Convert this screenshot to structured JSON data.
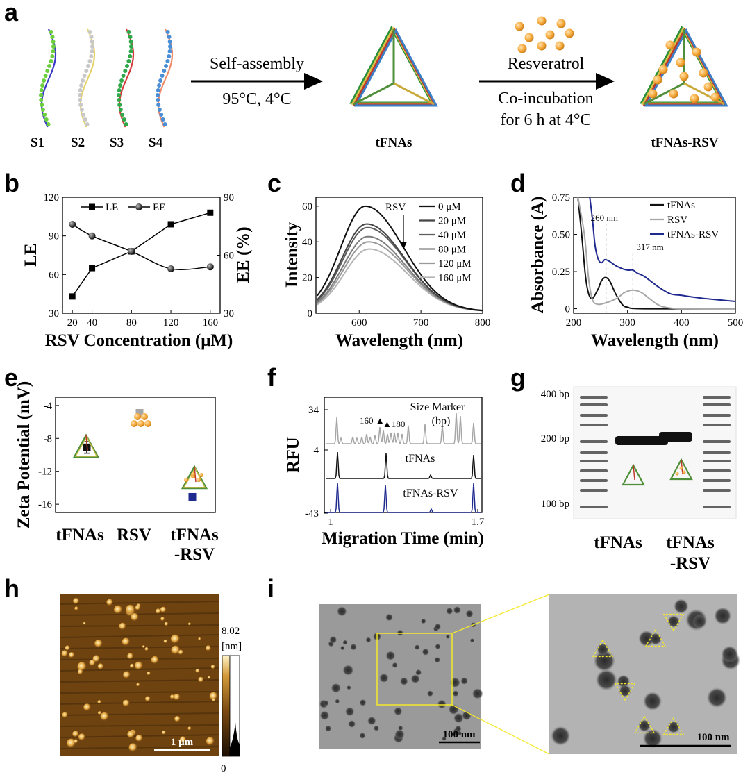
{
  "panels": {
    "a": {
      "label": "a",
      "strands": [
        "S1",
        "S2",
        "S3",
        "S4"
      ],
      "arrow1_top": "Self-assembly",
      "arrow1_bottom": "95°C, 4°C",
      "product1": "tFNAs",
      "arrow2_top": "Resveratrol",
      "arrow2_bottom1": "Co-incubation",
      "arrow2_bottom2": "for 6 h at 4°C",
      "product2": "tFNAs-RSV"
    },
    "b": {
      "label": "b"
    },
    "c": {
      "label": "c"
    },
    "d": {
      "label": "d"
    },
    "e": {
      "label": "e"
    },
    "f": {
      "label": "f"
    },
    "g": {
      "label": "g",
      "markers": [
        "400 bp",
        "200 bp",
        "100 bp"
      ],
      "lanes": [
        "tFNAs",
        "tFNAs",
        "-RSV"
      ]
    },
    "h": {
      "label": "h",
      "colorbar_max": "8.02",
      "colorbar_unit": "[nm]",
      "colorbar_min": "0",
      "scalebar": "1 μm"
    },
    "i": {
      "label": "i",
      "scalebar_left": "100 nm",
      "scalebar_right": "100 nm"
    }
  },
  "colors": {
    "navy": "#1f2a8f",
    "gray": "#a6a6a6",
    "black": "#111111",
    "orange": "#f5a93a"
  },
  "chart_data": [
    {
      "panel": "b",
      "type": "line",
      "xlabel": "RSV Concentration (μM)",
      "ylabel": "LE",
      "y2label": "EE (%)",
      "x": [
        20,
        40,
        80,
        120,
        160
      ],
      "xticks": [
        20,
        40,
        80,
        120,
        160
      ],
      "ylim": [
        30,
        120
      ],
      "yticks": [
        30,
        60,
        90,
        120
      ],
      "y2lim": [
        30,
        90
      ],
      "y2ticks": [
        30,
        60,
        90
      ],
      "series": [
        {
          "name": "LE",
          "axis": "left",
          "marker": "square",
          "values": [
            43,
            65,
            78,
            99,
            108
          ]
        },
        {
          "name": "EE",
          "axis": "right",
          "marker": "sphere",
          "values": [
            76,
            70,
            62,
            53,
            54
          ]
        }
      ]
    },
    {
      "panel": "c",
      "type": "line",
      "xlabel": "Wavelength (nm)",
      "ylabel": "Intensity",
      "xlim": [
        530,
        800
      ],
      "xticks": [
        600,
        700,
        800
      ],
      "ylim": [
        0,
        65
      ],
      "yticks": [
        0,
        20,
        40,
        60
      ],
      "annotation": "RSV",
      "series": [
        {
          "name": "0 μM",
          "peak_x": 610,
          "peak": 60,
          "color": "#111111"
        },
        {
          "name": "20 μM",
          "peak_x": 612,
          "peak": 50,
          "color": "#444444"
        },
        {
          "name": "40 μM",
          "peak_x": 613,
          "peak": 48,
          "color": "#5e5e5e"
        },
        {
          "name": "80 μM",
          "peak_x": 614,
          "peak": 43,
          "color": "#7d7d7d"
        },
        {
          "name": "120 μM",
          "peak_x": 615,
          "peak": 40,
          "color": "#9a9a9a"
        },
        {
          "name": "160 μM",
          "peak_x": 616,
          "peak": 36,
          "color": "#b5b5b5"
        }
      ]
    },
    {
      "panel": "d",
      "type": "line",
      "xlabel": "Wavelength (nm)",
      "ylabel": "Absorbance (A)",
      "xlim": [
        200,
        500
      ],
      "xticks": [
        200,
        300,
        400,
        500
      ],
      "ylim": [
        -0.03,
        0.75
      ],
      "yticks": [
        0,
        0.25,
        0.5,
        0.75
      ],
      "ytick_labels": [
        "0",
        "0.25",
        "0.50",
        "0.75"
      ],
      "annotations": [
        "260 nm",
        "317 nm"
      ],
      "annotation_x": [
        260,
        310
      ],
      "series": [
        {
          "name": "tFNAs",
          "color": "#111111",
          "points": [
            [
              208,
              0.75
            ],
            [
              215,
              0.5
            ],
            [
              222,
              0.22
            ],
            [
              228,
              0.1
            ],
            [
              235,
              0.07
            ],
            [
              245,
              0.13
            ],
            [
              252,
              0.19
            ],
            [
              260,
              0.21
            ],
            [
              268,
              0.18
            ],
            [
              278,
              0.1
            ],
            [
              290,
              0.03
            ],
            [
              300,
              0.01
            ],
            [
              330,
              0
            ],
            [
              500,
              0
            ]
          ]
        },
        {
          "name": "RSV",
          "color": "#a6a6a6",
          "points": [
            [
              208,
              0.75
            ],
            [
              220,
              0.5
            ],
            [
              228,
              0.2
            ],
            [
              235,
              0.06
            ],
            [
              245,
              0.03
            ],
            [
              260,
              0.04
            ],
            [
              280,
              0.07
            ],
            [
              295,
              0.11
            ],
            [
              310,
              0.125
            ],
            [
              325,
              0.11
            ],
            [
              340,
              0.07
            ],
            [
              355,
              0.03
            ],
            [
              370,
              0.01
            ],
            [
              400,
              0
            ],
            [
              500,
              0
            ]
          ]
        },
        {
          "name": "tFNAs-RSV",
          "color": "#1f2a8f",
          "points": [
            [
              230,
              0.75
            ],
            [
              235,
              0.6
            ],
            [
              240,
              0.42
            ],
            [
              246,
              0.33
            ],
            [
              252,
              0.31
            ],
            [
              258,
              0.33
            ],
            [
              266,
              0.32
            ],
            [
              278,
              0.29
            ],
            [
              290,
              0.27
            ],
            [
              300,
              0.26
            ],
            [
              310,
              0.26
            ],
            [
              318,
              0.24
            ],
            [
              330,
              0.22
            ],
            [
              345,
              0.18
            ],
            [
              360,
              0.14
            ],
            [
              380,
              0.1
            ],
            [
              400,
              0.09
            ],
            [
              440,
              0.07
            ],
            [
              500,
              0.05
            ]
          ]
        }
      ]
    },
    {
      "panel": "e",
      "type": "scatter",
      "xlabel": "",
      "ylabel": "Zeta Potential (mV)",
      "categories": [
        "tFNAs",
        "RSV",
        "tFNAs",
        "-RSV"
      ],
      "ylim": [
        -17,
        -3
      ],
      "yticks": [
        -4,
        -8,
        -12,
        -16
      ],
      "series": [
        {
          "name": "tFNAs",
          "value": -9.1,
          "error": 0.7,
          "color": "#111111"
        },
        {
          "name": "RSV",
          "value": -4.9,
          "error": 0.4,
          "color": "#a6a6a6"
        },
        {
          "name": "tFNAs-RSV",
          "value": -15.1,
          "error": 0.4,
          "color": "#1f2a8f"
        }
      ]
    },
    {
      "panel": "f",
      "type": "line",
      "xlabel": "Migration Time (min)",
      "ylabel": "RFU",
      "xticks": [
        1,
        1.7
      ],
      "ytick_labels": [
        "34",
        "4",
        "-43"
      ],
      "annotations": [
        "160",
        "180"
      ],
      "series": [
        {
          "name": "Size Marker (bp)",
          "color": "#a6a6a6"
        },
        {
          "name": "tFNAs",
          "color": "#111111"
        },
        {
          "name": "tFNAs-RSV",
          "color": "#1f2a8f"
        }
      ]
    }
  ]
}
